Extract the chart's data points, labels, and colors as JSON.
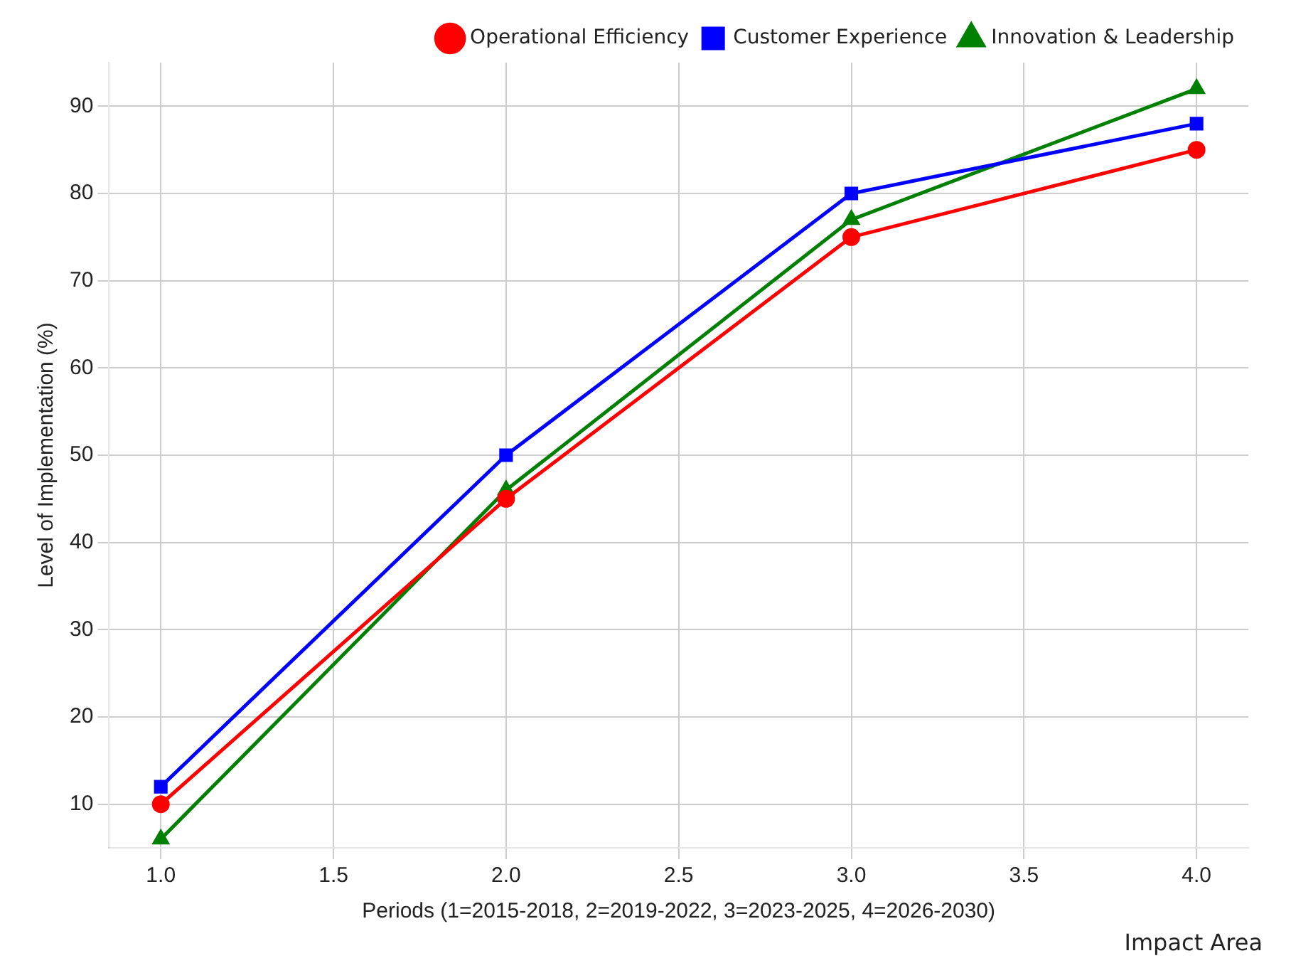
{
  "chart_data": {
    "type": "line",
    "xlabel": "Periods (1=2015-2018, 2=2019-2022, 3=2023-2025, 4=2026-2030)",
    "ylabel": "Level of Implementation (%)",
    "x": [
      1,
      2,
      3,
      4
    ],
    "xlim": [
      0.85,
      4.15
    ],
    "xticks": [
      {
        "value": 1,
        "label": "1.0"
      },
      {
        "value": 1.5,
        "label": "1.5"
      },
      {
        "value": 2,
        "label": "2.0"
      },
      {
        "value": 2.5,
        "label": "2.5"
      },
      {
        "value": 3,
        "label": "3.0"
      },
      {
        "value": 3.5,
        "label": "3.5"
      },
      {
        "value": 4,
        "label": "4.0"
      }
    ],
    "ylim": [
      5,
      95
    ],
    "yticks": [
      10,
      20,
      30,
      40,
      50,
      60,
      70,
      80,
      90
    ],
    "series": [
      {
        "name": "Operational Efficiency",
        "color": "#ff0000",
        "marker": "circle",
        "values": [
          10,
          45,
          75,
          85
        ]
      },
      {
        "name": "Customer Experience",
        "color": "#0000ff",
        "marker": "square",
        "values": [
          12,
          50,
          80,
          88
        ]
      },
      {
        "name": "Innovation & Leadership",
        "color": "#008000",
        "marker": "triangle",
        "values": [
          6,
          46,
          77,
          92
        ]
      }
    ],
    "annotations": [
      "Impact Area"
    ],
    "grid": true,
    "legend": "top right",
    "line_style": "solid"
  }
}
